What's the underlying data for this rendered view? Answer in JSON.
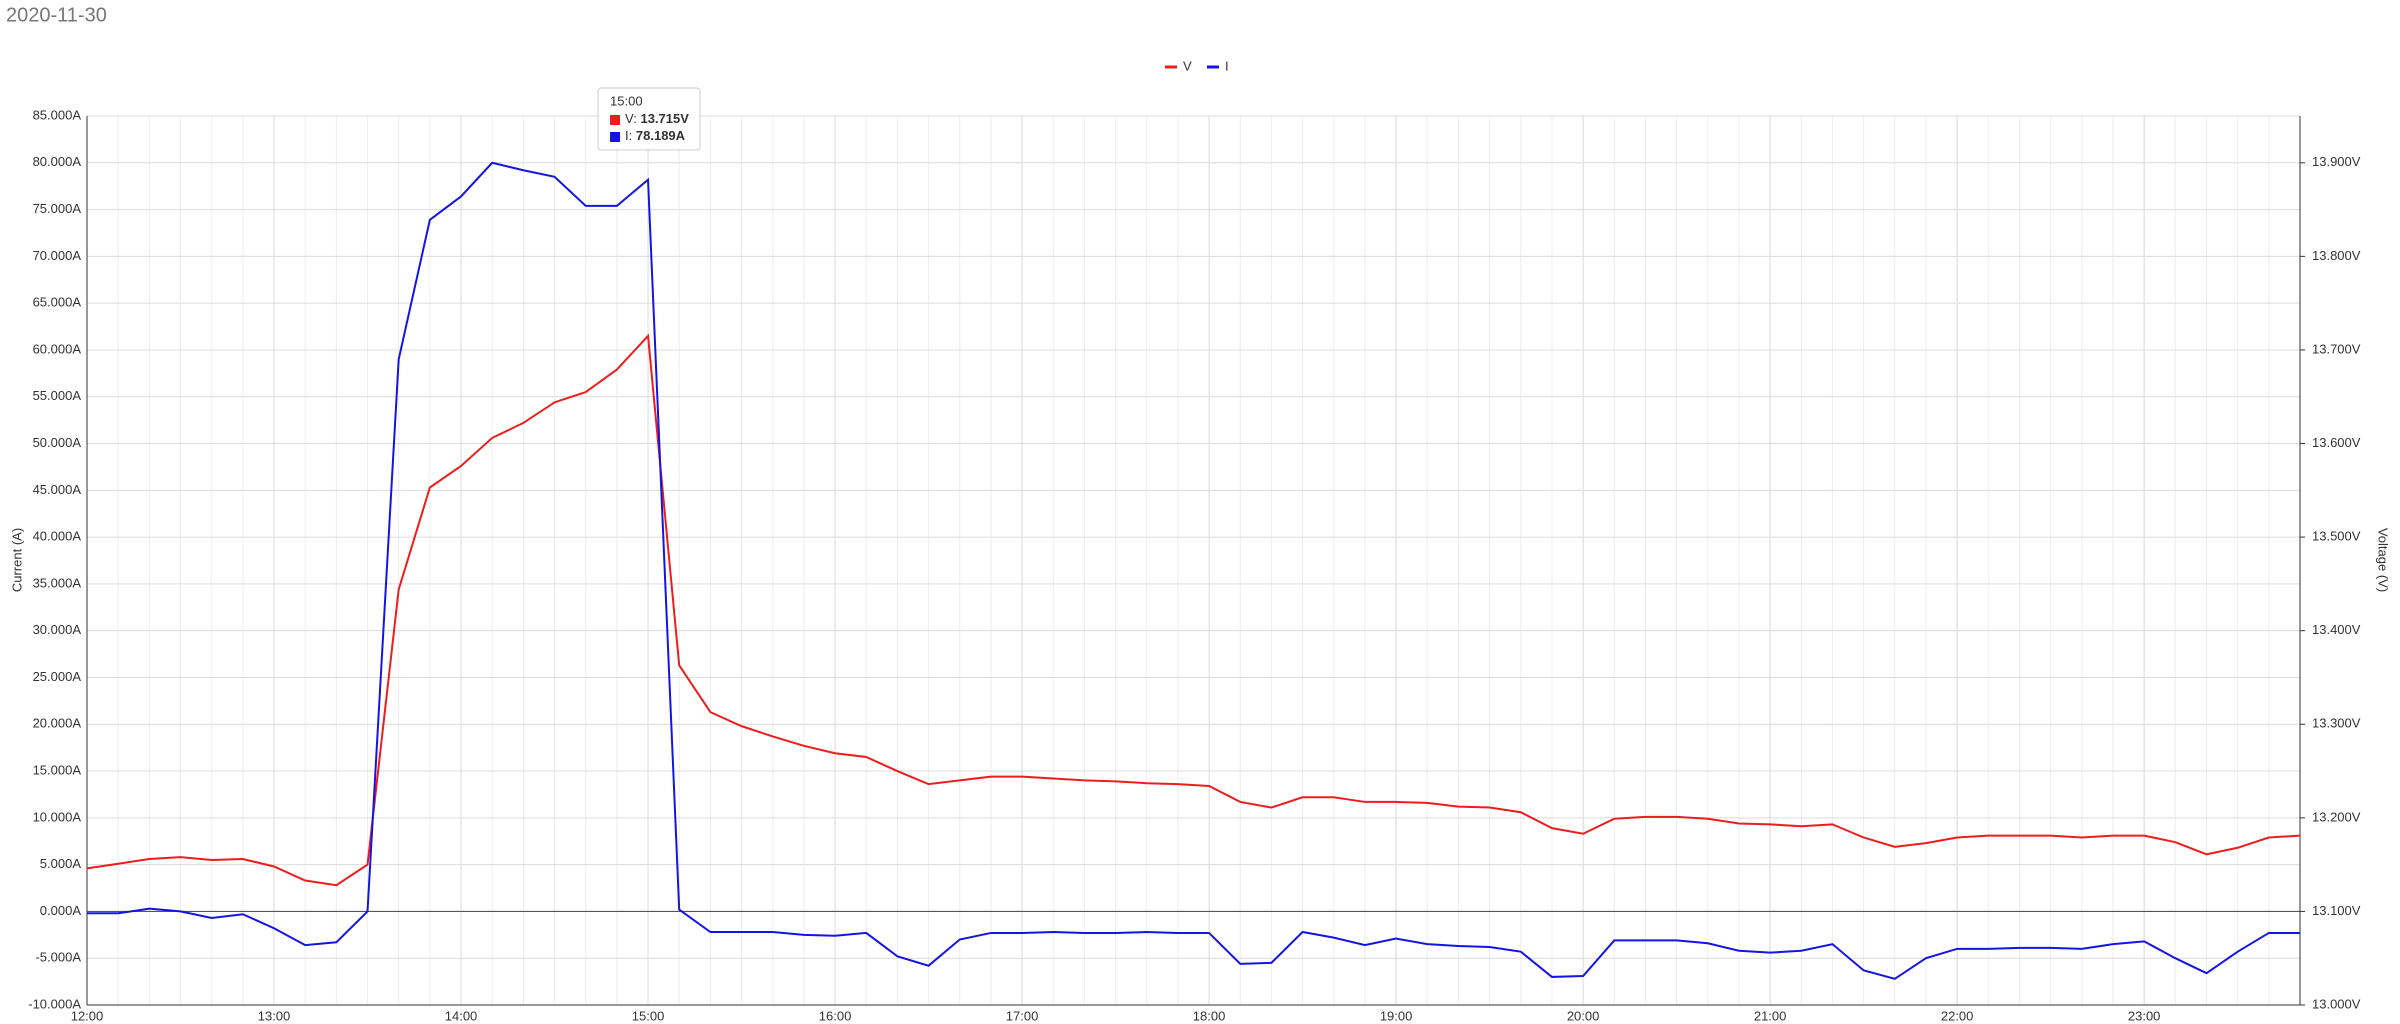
{
  "chart_data": {
    "type": "line",
    "title": "2020-11-30",
    "x": [
      "12:00",
      "12:10",
      "12:20",
      "12:30",
      "12:40",
      "12:50",
      "13:00",
      "13:10",
      "13:20",
      "13:30",
      "13:40",
      "13:50",
      "14:00",
      "14:10",
      "14:20",
      "14:30",
      "14:40",
      "14:50",
      "15:00",
      "15:10",
      "15:20",
      "15:30",
      "15:40",
      "15:50",
      "16:00",
      "16:10",
      "16:20",
      "16:30",
      "16:40",
      "16:50",
      "17:00",
      "17:10",
      "17:20",
      "17:30",
      "17:40",
      "17:50",
      "18:00",
      "18:10",
      "18:20",
      "18:30",
      "18:40",
      "18:50",
      "19:00",
      "19:10",
      "19:20",
      "19:30",
      "19:40",
      "19:50",
      "20:00",
      "20:10",
      "20:20",
      "20:30",
      "20:40",
      "20:50",
      "21:00",
      "21:10",
      "21:20",
      "21:30",
      "21:40",
      "21:50",
      "22:00",
      "22:10",
      "22:20",
      "22:30",
      "22:40",
      "22:50",
      "23:00",
      "23:10",
      "23:20",
      "23:30",
      "23:40",
      "23:50"
    ],
    "xlim": [
      "12:00",
      "23:50"
    ],
    "xticks": [
      "12:00",
      "13:00",
      "14:00",
      "15:00",
      "16:00",
      "17:00",
      "18:00",
      "19:00",
      "20:00",
      "21:00",
      "22:00",
      "23:00"
    ],
    "ylabel": "Current (A)",
    "y2label": "Voltage (V)",
    "ylim": [
      -10,
      85
    ],
    "yticks": [
      {
        "value": -10,
        "label": "-10.000A"
      },
      {
        "value": -5,
        "label": "-5.000A"
      },
      {
        "value": 0,
        "label": "0.000A"
      },
      {
        "value": 5,
        "label": "5.000A"
      },
      {
        "value": 10,
        "label": "10.000A"
      },
      {
        "value": 15,
        "label": "15.000A"
      },
      {
        "value": 20,
        "label": "20.000A"
      },
      {
        "value": 25,
        "label": "25.000A"
      },
      {
        "value": 30,
        "label": "30.000A"
      },
      {
        "value": 35,
        "label": "35.000A"
      },
      {
        "value": 40,
        "label": "40.000A"
      },
      {
        "value": 45,
        "label": "45.000A"
      },
      {
        "value": 50,
        "label": "50.000A"
      },
      {
        "value": 55,
        "label": "55.000A"
      },
      {
        "value": 60,
        "label": "60.000A"
      },
      {
        "value": 65,
        "label": "65.000A"
      },
      {
        "value": 70,
        "label": "70.000A"
      },
      {
        "value": 75,
        "label": "75.000A"
      },
      {
        "value": 80,
        "label": "80.000A"
      },
      {
        "value": 85,
        "label": "85.000A"
      }
    ],
    "y2lim": [
      13.0,
      13.95
    ],
    "y2ticks": [
      {
        "value": 13.0,
        "label": "13.000V"
      },
      {
        "value": 13.1,
        "label": "13.100V"
      },
      {
        "value": 13.2,
        "label": "13.200V"
      },
      {
        "value": 13.3,
        "label": "13.300V"
      },
      {
        "value": 13.4,
        "label": "13.400V"
      },
      {
        "value": 13.5,
        "label": "13.500V"
      },
      {
        "value": 13.6,
        "label": "13.600V"
      },
      {
        "value": 13.7,
        "label": "13.700V"
      },
      {
        "value": 13.8,
        "label": "13.800V"
      },
      {
        "value": 13.9,
        "label": "13.900V"
      }
    ],
    "grid": true,
    "legend": "top",
    "series": [
      {
        "name": "V",
        "color": "#ee1c1c",
        "axis": "y2",
        "values": [
          13.146,
          13.151,
          13.156,
          13.158,
          13.155,
          13.156,
          13.148,
          13.133,
          13.128,
          13.15,
          13.444,
          13.553,
          13.576,
          13.606,
          13.622,
          13.644,
          13.655,
          13.679,
          13.715,
          13.363,
          13.313,
          13.298,
          13.287,
          13.277,
          13.269,
          13.265,
          13.25,
          13.236,
          13.24,
          13.244,
          13.244,
          13.242,
          13.24,
          13.239,
          13.237,
          13.236,
          13.234,
          13.217,
          13.211,
          13.222,
          13.222,
          13.217,
          13.217,
          13.216,
          13.212,
          13.211,
          13.206,
          13.189,
          13.183,
          13.199,
          13.201,
          13.201,
          13.199,
          13.194,
          13.193,
          13.191,
          13.193,
          13.179,
          13.169,
          13.173,
          13.179,
          13.181,
          13.181,
          13.181,
          13.179,
          13.181,
          13.181,
          13.174,
          13.161,
          13.168,
          13.179,
          13.181
        ]
      },
      {
        "name": "I",
        "color": "#1414e6",
        "values": [
          -0.2,
          -0.2,
          0.3,
          0.0,
          -0.7,
          -0.3,
          -1.8,
          -3.6,
          -3.3,
          0.0,
          59.0,
          73.9,
          76.4,
          80.0,
          79.2,
          78.5,
          75.4,
          75.4,
          78.189,
          0.2,
          -2.2,
          -2.2,
          -2.2,
          -2.5,
          -2.6,
          -2.3,
          -4.8,
          -5.8,
          -3.0,
          -2.3,
          -2.3,
          -2.2,
          -2.3,
          -2.3,
          -2.2,
          -2.3,
          -2.3,
          -5.6,
          -5.5,
          -2.2,
          -2.8,
          -3.6,
          -2.9,
          -3.5,
          -3.7,
          -3.8,
          -4.3,
          -7.0,
          -6.9,
          -3.1,
          -3.1,
          -3.1,
          -3.4,
          -4.2,
          -4.4,
          -4.2,
          -3.5,
          -6.3,
          -7.2,
          -5.0,
          -4.0,
          -4.0,
          -3.9,
          -3.9,
          -4.0,
          -3.5,
          -3.2,
          -5.0,
          -6.6,
          -4.3,
          -2.3,
          -2.3
        ]
      }
    ],
    "tooltip": {
      "x": "15:00",
      "labels": [
        "13.715V",
        "78.189A"
      ]
    }
  }
}
